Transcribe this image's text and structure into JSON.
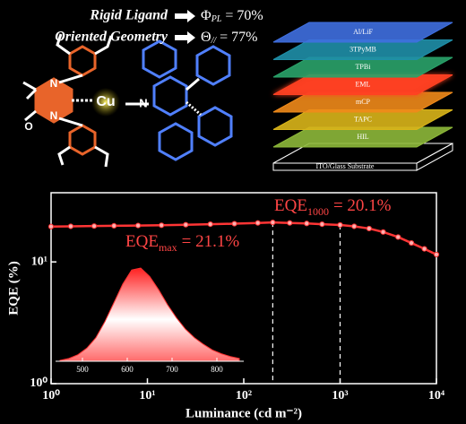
{
  "header": {
    "lines": [
      {
        "label": "Rigid Ligand",
        "symbol": "Φ",
        "sub": "PL",
        "value": "= 70%"
      },
      {
        "label": "Oriented Geometry",
        "symbol": "Θ",
        "sub": "//",
        "value": "= 77%"
      }
    ]
  },
  "molecule": {
    "atoms": [
      "N",
      "N",
      "O",
      "Cu",
      "N"
    ]
  },
  "device": {
    "layers": [
      {
        "name": "Al/LiF",
        "color": "#3f6fe0"
      },
      {
        "name": "3TPyMB",
        "color": "#1f8fa8"
      },
      {
        "name": "TPBi",
        "color": "#2aa36a"
      },
      {
        "name": "EML",
        "color": "#ff4020"
      },
      {
        "name": "mCP",
        "color": "#f08a1a"
      },
      {
        "name": "TAPC",
        "color": "#d9b51a"
      },
      {
        "name": "HIL",
        "color": "#8db83a"
      },
      {
        "name": "ITO/Glass Substrate",
        "color": "#000000"
      }
    ]
  },
  "chart_data": {
    "type": "line",
    "log_x": true,
    "log_y": true,
    "x": [
      1,
      1.6,
      2.8,
      4.5,
      8,
      14,
      25,
      45,
      80,
      140,
      200,
      300,
      450,
      650,
      1000,
      1400,
      2000,
      2800,
      4000,
      5500,
      7500,
      10000
    ],
    "series": [
      {
        "name": "EQE",
        "color": "#ff3535",
        "values": [
          19.5,
          19.6,
          19.7,
          19.8,
          19.9,
          20.0,
          20.2,
          20.4,
          20.6,
          20.9,
          21.1,
          20.9,
          20.7,
          20.4,
          20.1,
          19.6,
          18.8,
          17.6,
          16.0,
          14.3,
          12.8,
          11.5
        ]
      }
    ],
    "xlim": [
      1,
      10000
    ],
    "xticks": [
      {
        "value": 1,
        "label": "10⁰"
      },
      {
        "value": 10,
        "label": "10¹"
      },
      {
        "value": 100,
        "label": "10²"
      },
      {
        "value": 1000,
        "label": "10³"
      },
      {
        "value": 10000,
        "label": "10⁴"
      }
    ],
    "ylim": [
      1,
      37
    ],
    "yticks": [
      {
        "value": 1,
        "label": "10⁰"
      },
      {
        "value": 10,
        "label": "10¹"
      }
    ],
    "xlabel": "Luminance (cd m⁻²)",
    "ylabel": "EQE (%)",
    "annotations": [
      {
        "x": 200,
        "y": 21.1,
        "base": "EQE",
        "sub": "max",
        "text": "= 21.1%"
      },
      {
        "x": 1000,
        "y": 20.1,
        "base": "EQE",
        "sub": "1000",
        "text": "= 20.1%"
      }
    ],
    "inset": {
      "x": [
        450,
        470,
        490,
        510,
        530,
        550,
        570,
        590,
        610,
        630,
        650,
        670,
        690,
        710,
        730,
        750,
        770,
        790,
        810,
        830,
        850
      ],
      "values": [
        0.01,
        0.03,
        0.07,
        0.14,
        0.25,
        0.42,
        0.62,
        0.82,
        0.97,
        0.99,
        0.9,
        0.76,
        0.6,
        0.46,
        0.34,
        0.25,
        0.18,
        0.12,
        0.08,
        0.05,
        0.03
      ],
      "xlim": [
        440,
        860
      ],
      "ylim": [
        0,
        1
      ],
      "xticks": [
        500,
        600,
        700,
        800
      ]
    }
  }
}
